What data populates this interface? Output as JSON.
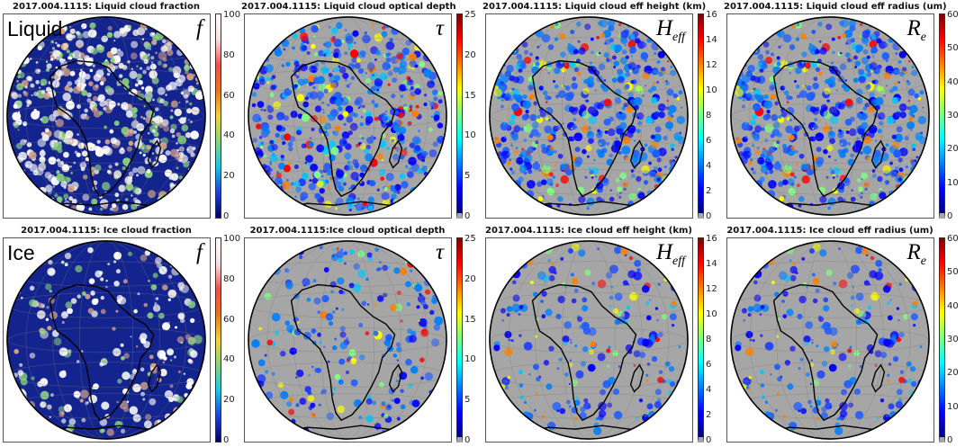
{
  "colors": {
    "ocean": "#14248f",
    "background_gray": "#a6a6a6",
    "jet": [
      "#00007f",
      "#0000ff",
      "#007fff",
      "#00ffff",
      "#7fff7f",
      "#ffff00",
      "#ff7f00",
      "#ff0000",
      "#7f0000"
    ],
    "fraction": [
      "#000064",
      "#1e40d8",
      "#19c8e6",
      "#8bd17e",
      "#f2d33c",
      "#e8751a",
      "#ef4f4f",
      "#f8e0e0",
      "#ffffff"
    ]
  },
  "panels": [
    {
      "id": "liquid-fraction",
      "title": "2017.004.1115: Liquid cloud fraction",
      "row_label": "Liquid",
      "symbol": "f",
      "symbol_sub": "",
      "style": "fraction",
      "ticks": [
        "100",
        "80",
        "60",
        "40",
        "20",
        "0"
      ],
      "icon": "globe-map"
    },
    {
      "id": "liquid-optical-depth",
      "title": "2017.004.1115: Liquid cloud optical depth",
      "row_label": "",
      "symbol": "τ",
      "symbol_sub": "",
      "style": "gray",
      "ticks": [
        "25",
        "20",
        "15",
        "10",
        "5",
        "0"
      ],
      "icon": "globe-map"
    },
    {
      "id": "liquid-eff-height",
      "title": "2017.004.1115: Liquid cloud eff height (km)",
      "row_label": "",
      "symbol": "H",
      "symbol_sub": "eff",
      "style": "gray",
      "ticks": [
        "16",
        "14",
        "12",
        "10",
        "8",
        "6",
        "4",
        "2",
        "0"
      ],
      "icon": "globe-map"
    },
    {
      "id": "liquid-eff-radius",
      "title": "2017.004.1115: Liquid cloud eff radius (um)",
      "row_label": "",
      "symbol": "R",
      "symbol_sub": "e",
      "style": "gray",
      "ticks": [
        "60",
        "50",
        "40",
        "30",
        "20",
        "10",
        "0"
      ],
      "icon": "globe-map"
    },
    {
      "id": "ice-fraction",
      "title": "2017.004.1115: Ice cloud fraction",
      "row_label": "Ice",
      "symbol": "f",
      "symbol_sub": "",
      "style": "fraction",
      "ticks": [
        "100",
        "80",
        "60",
        "40",
        "20",
        "0"
      ],
      "icon": "globe-map"
    },
    {
      "id": "ice-optical-depth",
      "title": "2017.004.1115:Ice cloud optical depth",
      "row_label": "",
      "symbol": "τ",
      "symbol_sub": "",
      "style": "gray",
      "ticks": [
        "25",
        "20",
        "15",
        "10",
        "5",
        "0"
      ],
      "icon": "globe-map"
    },
    {
      "id": "ice-eff-height",
      "title": "2017.004.1115: Ice cloud eff height (km)",
      "row_label": "",
      "symbol": "H",
      "symbol_sub": "eff",
      "style": "gray",
      "ticks": [
        "16",
        "14",
        "12",
        "10",
        "8",
        "6",
        "4",
        "2",
        "0"
      ],
      "icon": "globe-map"
    },
    {
      "id": "ice-eff-radius",
      "title": "2017.004.1115: Ice cloud eff radius (um)",
      "row_label": "",
      "symbol": "R",
      "symbol_sub": "e",
      "style": "gray",
      "ticks": [
        "60",
        "50",
        "40",
        "30",
        "20",
        "10",
        "0"
      ],
      "icon": "globe-map"
    }
  ]
}
